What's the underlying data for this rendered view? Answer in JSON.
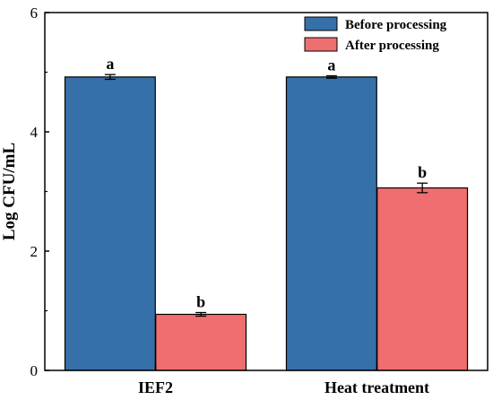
{
  "chart_data": {
    "type": "bar",
    "categories": [
      "IEF2",
      "Heat treatment"
    ],
    "series": [
      {
        "name": "Before processing",
        "color": "#3670a9",
        "values": [
          4.92,
          4.92
        ],
        "errors": [
          0.04,
          0.02
        ],
        "labels": [
          "a",
          "a"
        ]
      },
      {
        "name": "After processing",
        "color": "#ef6e70",
        "values": [
          0.94,
          3.06
        ],
        "errors": [
          0.03,
          0.08
        ],
        "labels": [
          "b",
          "b"
        ]
      }
    ],
    "ylabel": "Log CFU/mL",
    "xlabel": "",
    "ylim": [
      0,
      6
    ],
    "yticks": [
      "0",
      "2",
      "4",
      "6"
    ],
    "legend_position": "top-right",
    "grid": false
  }
}
